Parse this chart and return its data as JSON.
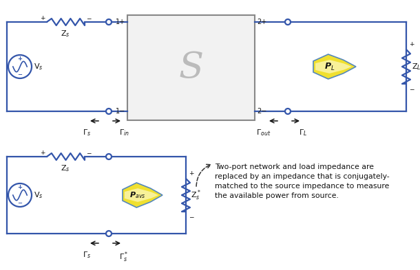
{
  "bg_color": "#ffffff",
  "line_color": "#3355aa",
  "text_color": "#111111",
  "box_fill": "#f2f2f2",
  "box_edge": "#888888",
  "arrow_fill": "#f0e040",
  "arrow_edge": "#5588bb",
  "title_text": "Two-port network and load impedance are\nreplaced by an impedance that is conjugately-\nmatched to the source impedance to measure\nthe available power from source.",
  "fig_width": 6.1,
  "fig_height": 3.93,
  "dpi": 100
}
